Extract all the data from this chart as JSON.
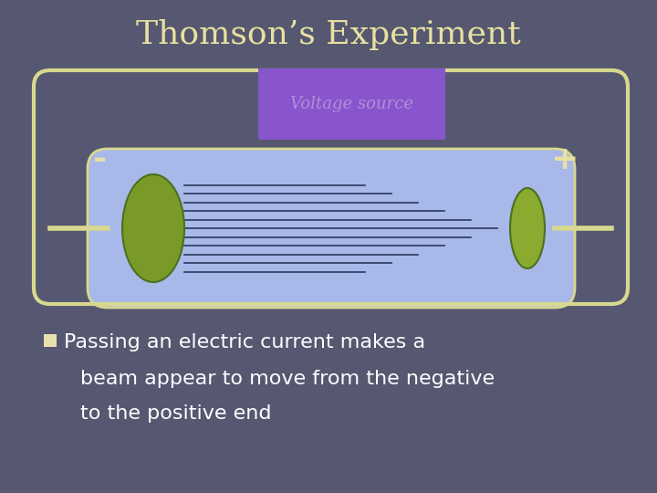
{
  "title": "Thomson’s Experiment",
  "title_color": "#e8e0a0",
  "title_fontsize": 26,
  "bg_color": "#555870",
  "voltage_source_label": "Voltage source",
  "voltage_source_bg": "#8855cc",
  "voltage_source_text_color": "#b090d8",
  "minus_label": "-",
  "plus_label": "+",
  "sign_color": "#e8e0a0",
  "tube_fill": "#a8b8e8",
  "tube_outline": "#d8d890",
  "electrode_color_left": "#7a9a28",
  "electrode_color_right": "#8aaa30",
  "beam_line_color": "#2a3860",
  "bullet_color": "#e8e0b0",
  "text_color": "#ffffff",
  "body_line1": "Passing an electric current makes a",
  "body_line2": "beam appear to move from the negative",
  "body_line3": "to the positive end",
  "body_fontsize": 16
}
